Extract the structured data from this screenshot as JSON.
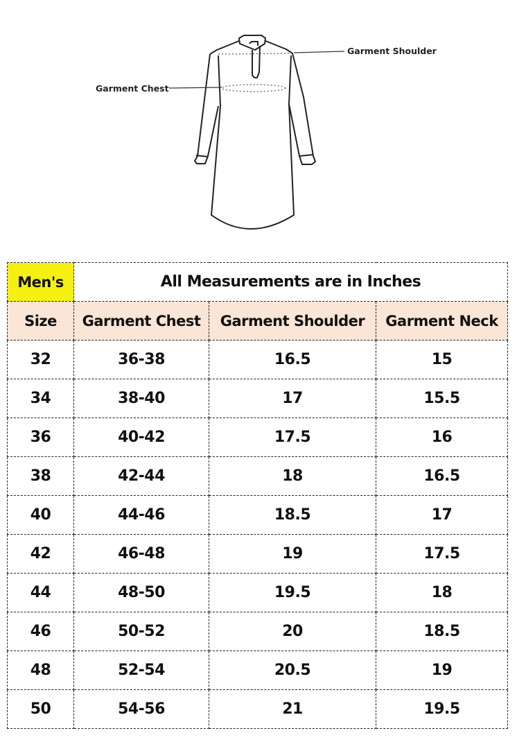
{
  "illustration": {
    "chest_label": "Garment Chest",
    "shoulder_label": "Garment Shoulder"
  },
  "table": {
    "category_label": "Men's",
    "units_note": "All Measurements are in Inches",
    "header_bg": "#fbe5d6",
    "category_bg": "#f5ef12",
    "columns": [
      "Size",
      "Garment Chest",
      "Garment Shoulder",
      "Garment Neck"
    ],
    "rows": [
      [
        "32",
        "36-38",
        "16.5",
        "15"
      ],
      [
        "34",
        "38-40",
        "17",
        "15.5"
      ],
      [
        "36",
        "40-42",
        "17.5",
        "16"
      ],
      [
        "38",
        "42-44",
        "18",
        "16.5"
      ],
      [
        "40",
        "44-46",
        "18.5",
        "17"
      ],
      [
        "42",
        "46-48",
        "19",
        "17.5"
      ],
      [
        "44",
        "48-50",
        "19.5",
        "18"
      ],
      [
        "46",
        "50-52",
        "20",
        "18.5"
      ],
      [
        "48",
        "52-54",
        "20.5",
        "19"
      ],
      [
        "50",
        "54-56",
        "21",
        "19.5"
      ]
    ]
  }
}
